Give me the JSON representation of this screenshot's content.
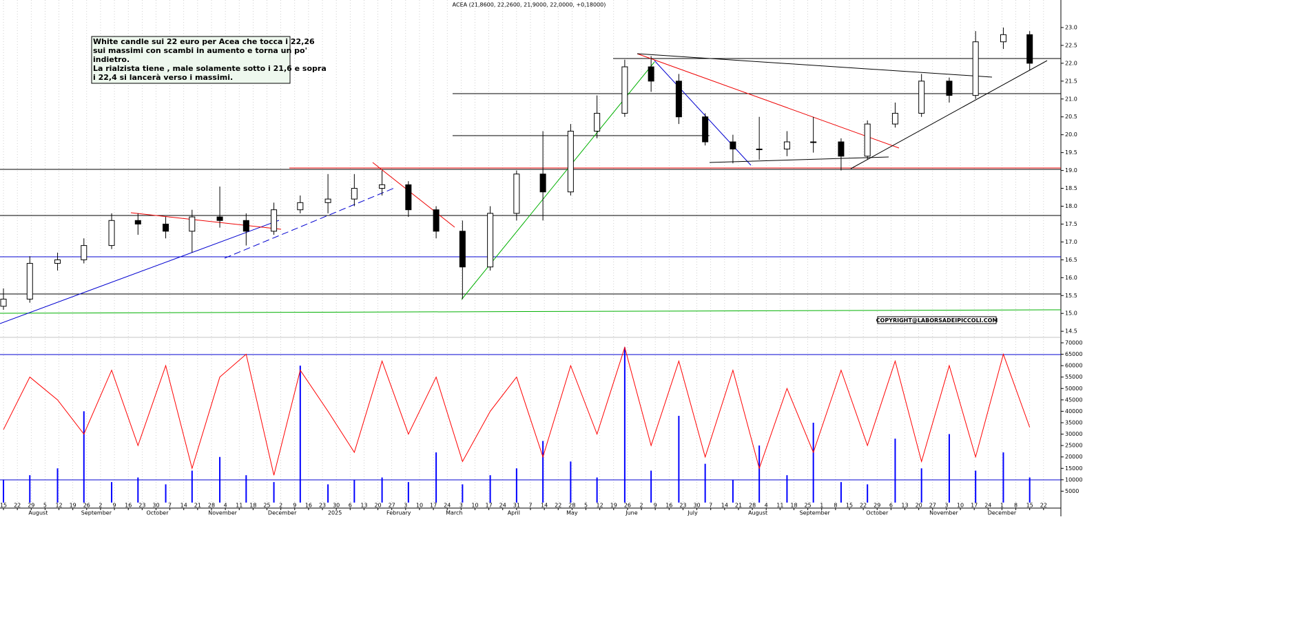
{
  "chart_data": [
    {
      "type": "candlestick",
      "title": "ACEA (21,8600, 22,2600, 21,9000, 22,0000, +0,18000)",
      "annotation": [
        "White candle sui 22 euro per Acea che tocca i 22,26",
        "sui massimi con scambi in aumento e torna un po'",
        "indietro.",
        "La rialzista tiene , male solamente sotto i 21,6 e sopra",
        "i 22,4 si lancerà verso i massimi."
      ],
      "copyright": "COPYRIGHT@LABORSADEIPICCOLI.COM",
      "x": [
        0,
        1.9,
        3.9,
        5.8,
        7.8,
        9.7,
        11.7,
        13.6,
        15.6,
        17.5,
        19.5,
        21.4,
        23.4,
        25.3,
        27.3,
        29.2,
        31.2,
        33.1,
        35.1,
        37.0,
        38.9,
        40.9,
        42.8,
        44.8,
        46.7,
        48.7,
        50.6,
        52.6,
        54.5,
        56.5,
        58.4,
        60.4,
        62.3,
        64.3,
        66.2,
        68.2,
        70.1,
        72.1,
        74.0
      ],
      "open": [
        15.2,
        15.4,
        16.4,
        16.5,
        16.9,
        17.6,
        17.5,
        17.3,
        17.7,
        17.6,
        17.3,
        17.9,
        18.1,
        18.2,
        18.5,
        18.6,
        17.9,
        17.3,
        16.3,
        17.8,
        18.9,
        18.4,
        20.1,
        20.6,
        21.9,
        21.5,
        20.5,
        19.8,
        19.6,
        19.6,
        19.8,
        19.8,
        19.4,
        20.3,
        20.6,
        21.5,
        21.1,
        22.6,
        22.8
      ],
      "high": [
        15.7,
        16.6,
        16.7,
        17.1,
        17.8,
        17.8,
        17.7,
        17.9,
        18.55,
        17.8,
        18.1,
        18.3,
        18.9,
        18.9,
        19.0,
        18.7,
        18.0,
        17.6,
        18.0,
        19.0,
        20.1,
        20.3,
        21.1,
        22.1,
        22.2,
        21.7,
        20.6,
        20.0,
        20.5,
        20.1,
        20.5,
        19.9,
        20.4,
        20.9,
        21.7,
        21.6,
        22.9,
        23.0,
        22.9
      ],
      "low": [
        15.1,
        15.3,
        16.2,
        16.4,
        16.8,
        17.2,
        17.1,
        16.7,
        17.4,
        16.9,
        17.2,
        17.8,
        17.8,
        18.0,
        18.3,
        17.7,
        17.1,
        15.4,
        16.2,
        17.6,
        17.6,
        18.3,
        19.9,
        20.5,
        21.2,
        20.3,
        19.7,
        19.2,
        19.3,
        19.4,
        19.5,
        19.0,
        19.3,
        20.2,
        20.5,
        20.9,
        21.0,
        22.4,
        21.8
      ],
      "close": [
        15.4,
        16.4,
        16.5,
        16.9,
        17.6,
        17.5,
        17.3,
        17.7,
        17.6,
        17.3,
        17.9,
        18.1,
        18.2,
        18.5,
        18.6,
        17.9,
        17.3,
        16.3,
        17.8,
        18.9,
        18.4,
        20.1,
        20.6,
        21.9,
        21.5,
        20.5,
        19.8,
        19.6,
        19.6,
        19.8,
        19.8,
        19.4,
        20.3,
        20.6,
        21.5,
        21.1,
        22.6,
        22.8,
        22.0
      ],
      "xlim": [
        -0.25,
        76.25
      ],
      "ylim": [
        14.33,
        23.77
      ],
      "yticks": [
        {
          "value": 14.5,
          "label": "14.5"
        },
        {
          "value": 15,
          "label": "15.0"
        },
        {
          "value": 15.5,
          "label": "15.5"
        },
        {
          "value": 16,
          "label": "16.0"
        },
        {
          "value": 16.5,
          "label": "16.5"
        },
        {
          "value": 17,
          "label": "17.0"
        },
        {
          "value": 17.5,
          "label": "17.5"
        },
        {
          "value": 18,
          "label": "18.0"
        },
        {
          "value": 18.5,
          "label": "18.5"
        },
        {
          "value": 19,
          "label": "19.0"
        },
        {
          "value": 19.5,
          "label": "19.5"
        },
        {
          "value": 20,
          "label": "20.0"
        },
        {
          "value": 20.5,
          "label": "20.5"
        },
        {
          "value": 21,
          "label": "21.0"
        },
        {
          "value": 21.5,
          "label": "21.5"
        },
        {
          "value": 22,
          "label": "22.0"
        },
        {
          "value": 22.5,
          "label": "22.5"
        },
        {
          "value": 23,
          "label": "23.0"
        }
      ],
      "xticks": [
        {
          "value": 0,
          "label": "15"
        },
        {
          "value": 1,
          "label": "22"
        },
        {
          "value": 2,
          "label": "29"
        },
        {
          "value": 3,
          "label": "5"
        },
        {
          "value": 4,
          "label": "12"
        },
        {
          "value": 5,
          "label": "19"
        },
        {
          "value": 6,
          "label": "26"
        },
        {
          "value": 7,
          "label": "2"
        },
        {
          "value": 8,
          "label": "9"
        },
        {
          "value": 9,
          "label": "16"
        },
        {
          "value": 10,
          "label": "23"
        },
        {
          "value": 11,
          "label": "30"
        },
        {
          "value": 12,
          "label": "7"
        },
        {
          "value": 13,
          "label": "14"
        },
        {
          "value": 14,
          "label": "21"
        },
        {
          "value": 15,
          "label": "28"
        },
        {
          "value": 16,
          "label": "4"
        },
        {
          "value": 17,
          "label": "11"
        },
        {
          "value": 18,
          "label": "18"
        },
        {
          "value": 19,
          "label": "25"
        },
        {
          "value": 20,
          "label": "2"
        },
        {
          "value": 21,
          "label": "9"
        },
        {
          "value": 22,
          "label": "16"
        },
        {
          "value": 23,
          "label": "23"
        },
        {
          "value": 24,
          "label": "30"
        },
        {
          "value": 25,
          "label": "6"
        },
        {
          "value": 26,
          "label": "13"
        },
        {
          "value": 27,
          "label": "20"
        },
        {
          "value": 28,
          "label": "27"
        },
        {
          "value": 29,
          "label": "3"
        },
        {
          "value": 30,
          "label": "10"
        },
        {
          "value": 31,
          "label": "17"
        },
        {
          "value": 32,
          "label": "24"
        },
        {
          "value": 33,
          "label": "3"
        },
        {
          "value": 34,
          "label": "10"
        },
        {
          "value": 35,
          "label": "17"
        },
        {
          "value": 36,
          "label": "24"
        },
        {
          "value": 37,
          "label": "31"
        },
        {
          "value": 38,
          "label": "7"
        },
        {
          "value": 39,
          "label": "14"
        },
        {
          "value": 40,
          "label": "22"
        },
        {
          "value": 41,
          "label": "28"
        },
        {
          "value": 42,
          "label": "5"
        },
        {
          "value": 43,
          "label": "12"
        },
        {
          "value": 44,
          "label": "19"
        },
        {
          "value": 45,
          "label": "26"
        },
        {
          "value": 46,
          "label": "2"
        },
        {
          "value": 47,
          "label": "9"
        },
        {
          "value": 48,
          "label": "16"
        },
        {
          "value": 49,
          "label": "23"
        },
        {
          "value": 50,
          "label": "30"
        },
        {
          "value": 51,
          "label": "7"
        },
        {
          "value": 52,
          "label": "14"
        },
        {
          "value": 53,
          "label": "21"
        },
        {
          "value": 54,
          "label": "28"
        },
        {
          "value": 55,
          "label": "4"
        },
        {
          "value": 56,
          "label": "11"
        },
        {
          "value": 57,
          "label": "18"
        },
        {
          "value": 58,
          "label": "25"
        },
        {
          "value": 59,
          "label": "1"
        },
        {
          "value": 60,
          "label": "8"
        },
        {
          "value": 61,
          "label": "15"
        },
        {
          "value": 62,
          "label": "22"
        },
        {
          "value": 63,
          "label": "29"
        },
        {
          "value": 64,
          "label": "6"
        },
        {
          "value": 65,
          "label": "13"
        },
        {
          "value": 66,
          "label": "20"
        },
        {
          "value": 67,
          "label": "27"
        },
        {
          "value": 68,
          "label": "3"
        },
        {
          "value": 69,
          "label": "10"
        },
        {
          "value": 70,
          "label": "17"
        },
        {
          "value": 71,
          "label": "24"
        },
        {
          "value": 72,
          "label": "1"
        },
        {
          "value": 73,
          "label": "8"
        },
        {
          "value": 74,
          "label": "15"
        },
        {
          "value": 75,
          "label": "22"
        }
      ],
      "months": [
        {
          "value": 2.5,
          "label": "August"
        },
        {
          "value": 6.7,
          "label": "September"
        },
        {
          "value": 11.1,
          "label": "October"
        },
        {
          "value": 15.8,
          "label": "November"
        },
        {
          "value": 20.1,
          "label": "December"
        },
        {
          "value": 23.9,
          "label": "2025"
        },
        {
          "value": 28.5,
          "label": "February"
        },
        {
          "value": 32.5,
          "label": "March"
        },
        {
          "value": 36.8,
          "label": "April"
        },
        {
          "value": 41.0,
          "label": "May"
        },
        {
          "value": 45.3,
          "label": "June"
        },
        {
          "value": 49.7,
          "label": "July"
        },
        {
          "value": 54.4,
          "label": "August"
        },
        {
          "value": 58.5,
          "label": "September"
        },
        {
          "value": 63.0,
          "label": "October"
        },
        {
          "value": 67.8,
          "label": "November"
        },
        {
          "value": 72.0,
          "label": "December"
        }
      ]
    },
    {
      "type": "volume",
      "ylim": [
        0,
        72400
      ],
      "yticks": [
        5000,
        10000,
        15000,
        20000,
        25000,
        30000,
        35000,
        40000,
        45000,
        50000,
        55000,
        60000,
        65000,
        70000
      ],
      "series": [
        {
          "color": "#0000ff",
          "values": [
            10000,
            12000,
            15000,
            40000,
            9000,
            11000,
            8000,
            14000,
            20000,
            12000,
            9000,
            60000,
            8000,
            10000,
            11000,
            9000,
            22000,
            8000,
            12000,
            15000,
            27000,
            18000,
            11000,
            68000,
            14000,
            38000,
            17000,
            10000,
            25000,
            12000,
            35000,
            9000,
            8000,
            28000,
            15000,
            30000,
            14000,
            22000,
            11000
          ]
        },
        {
          "color": "#ff0000",
          "values": [
            32000,
            55000,
            45000,
            30000,
            58000,
            25000,
            60000,
            15000,
            55000,
            65000,
            12000,
            58000,
            40000,
            22000,
            62000,
            30000,
            55000,
            18000,
            40000,
            55000,
            20000,
            60000,
            30000,
            68000,
            25000,
            62000,
            20000,
            58000,
            15000,
            50000,
            22000,
            58000,
            25000,
            62000,
            18000,
            60000,
            20000,
            65000,
            33000
          ]
        }
      ]
    }
  ]
}
